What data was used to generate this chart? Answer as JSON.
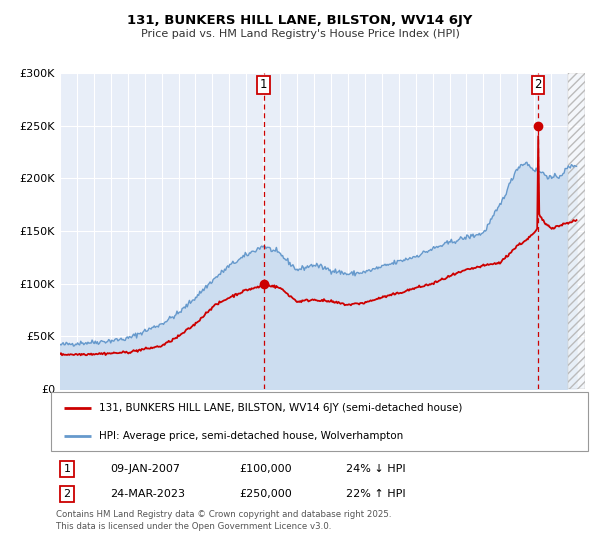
{
  "title": "131, BUNKERS HILL LANE, BILSTON, WV14 6JY",
  "subtitle": "Price paid vs. HM Land Registry's House Price Index (HPI)",
  "legend_line1": "131, BUNKERS HILL LANE, BILSTON, WV14 6JY (semi-detached house)",
  "legend_line2": "HPI: Average price, semi-detached house, Wolverhampton",
  "footer": "Contains HM Land Registry data © Crown copyright and database right 2025.\nThis data is licensed under the Open Government Licence v3.0.",
  "sale1_label": "1",
  "sale1_date": "09-JAN-2007",
  "sale1_price": "£100,000",
  "sale1_hpi": "24% ↓ HPI",
  "sale2_label": "2",
  "sale2_date": "24-MAR-2023",
  "sale2_price": "£250,000",
  "sale2_hpi": "22% ↑ HPI",
  "sale1_x": 2007.03,
  "sale1_y": 100000,
  "sale2_x": 2023.23,
  "sale2_y": 250000,
  "vline1_x": 2007.03,
  "vline2_x": 2023.23,
  "ylim": [
    0,
    300000
  ],
  "xlim_start": 1995.0,
  "xlim_end": 2026.0,
  "hatch_start": 2025.0,
  "price_line_color": "#cc0000",
  "hpi_line_color": "#6699cc",
  "hpi_fill_color": "#ccddf0",
  "plot_bg_color": "#e8eef8",
  "grid_color": "#ffffff",
  "vline_color": "#cc0000",
  "marker_color": "#cc0000",
  "sale_box_color": "#cc0000",
  "yticks": [
    0,
    50000,
    100000,
    150000,
    200000,
    250000,
    300000
  ],
  "ytick_labels": [
    "£0",
    "£50K",
    "£100K",
    "£150K",
    "£200K",
    "£250K",
    "£300K"
  ],
  "xticks": [
    1995,
    1996,
    1997,
    1998,
    1999,
    2000,
    2001,
    2002,
    2003,
    2004,
    2005,
    2006,
    2007,
    2008,
    2009,
    2010,
    2011,
    2012,
    2013,
    2014,
    2015,
    2016,
    2017,
    2018,
    2019,
    2020,
    2021,
    2022,
    2023,
    2024,
    2025,
    2026
  ]
}
